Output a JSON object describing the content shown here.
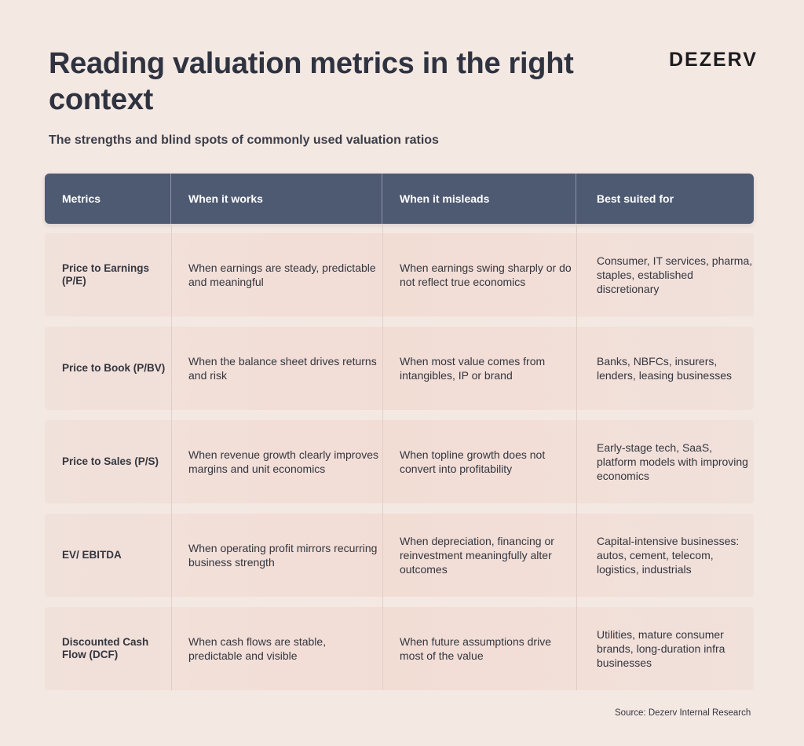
{
  "header": {
    "title": "Reading valuation metrics in the right context",
    "subtitle": "The strengths and blind spots of commonly used valuation ratios",
    "logo": "DEZERV"
  },
  "table": {
    "columns": [
      "Metrics",
      "When it works",
      "When it misleads",
      "Best suited for"
    ],
    "rows": [
      [
        "Price to Earnings (P/E)",
        "When earnings are steady, predictable and meaningful",
        "When earnings swing sharply or do not reflect true economics",
        "Consumer, IT services, pharma, staples, established discretionary"
      ],
      [
        "Price to Book (P/BV)",
        "When the balance sheet drives returns and risk",
        "When most value comes from intangibles, IP or brand",
        "Banks, NBFCs, insurers, lenders, leasing businesses"
      ],
      [
        "Price to Sales (P/S)",
        "When revenue growth clearly improves margins and unit economics",
        "When topline growth does not convert into profitability",
        "Early-stage tech, SaaS, platform models with improving economics"
      ],
      [
        "EV/ EBITDA",
        "When operating profit mirrors recurring business strength",
        "When depreciation, financing or reinvestment meaningfully alter outcomes",
        "Capital-intensive businesses: autos, cement, telecom, logistics, industrials"
      ],
      [
        "Discounted Cash Flow (DCF)",
        "When cash flows are stable, predictable and visible",
        "When future assumptions drive most of the value",
        "Utilities, mature consumer brands, long-duration infra businesses"
      ]
    ]
  },
  "footer": {
    "source": "Source: Dezerv Internal Research"
  }
}
